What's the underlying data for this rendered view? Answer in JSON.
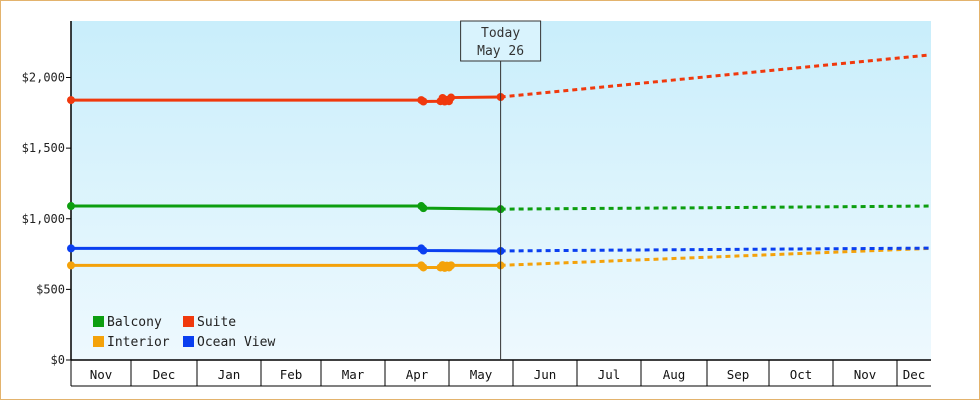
{
  "colors": {
    "background_top": "#c9eefb",
    "background_bottom": "#eef9fe",
    "frame_border": "#e3b36d",
    "Balcony": "#0d9e10",
    "Suite": "#f0390d",
    "Interior": "#f4a20a",
    "Ocean View": "#0a3ff0"
  },
  "chart_data": {
    "type": "line",
    "title": "",
    "xlabel": "",
    "ylabel": "",
    "ylim": [
      0,
      2400
    ],
    "y_ticks": [
      {
        "value": 0,
        "label": "$0"
      },
      {
        "value": 500,
        "label": "$500"
      },
      {
        "value": 1000,
        "label": "$1,000"
      },
      {
        "value": 1500,
        "label": "$1,500"
      },
      {
        "value": 2000,
        "label": "$2,000"
      }
    ],
    "x_months": [
      "Nov",
      "Dec",
      "Jan",
      "Feb",
      "Mar",
      "Apr",
      "May",
      "Jun",
      "Jul",
      "Aug",
      "Sep",
      "Oct",
      "Nov",
      "Dec"
    ],
    "grid": false,
    "legend_position": "bottom-left",
    "today_marker": {
      "line1": "Today",
      "line2": "May 26"
    },
    "series": [
      {
        "name": "Balcony",
        "history": [
          {
            "x": "Nov 1",
            "y": 1090
          },
          {
            "x": "Apr 18",
            "y": 1090
          },
          {
            "x": "Apr 19",
            "y": 1075
          },
          {
            "x": "May 26",
            "y": 1068
          }
        ],
        "forecast": [
          {
            "x": "May 26",
            "y": 1068
          },
          {
            "x": "Jul 1",
            "y": 1072
          },
          {
            "x": "Sep 1",
            "y": 1078
          },
          {
            "x": "Dec 31",
            "y": 1090
          }
        ]
      },
      {
        "name": "Suite",
        "history": [
          {
            "x": "Nov 1",
            "y": 1840
          },
          {
            "x": "Apr 18",
            "y": 1840
          },
          {
            "x": "Apr 19",
            "y": 1830
          },
          {
            "x": "Apr 27",
            "y": 1832
          },
          {
            "x": "Apr 28",
            "y": 1855
          },
          {
            "x": "Apr 29",
            "y": 1830
          },
          {
            "x": "Apr 30",
            "y": 1842
          },
          {
            "x": "May 1",
            "y": 1832
          },
          {
            "x": "May 2",
            "y": 1858
          },
          {
            "x": "May 26",
            "y": 1862
          }
        ],
        "forecast": [
          {
            "x": "May 26",
            "y": 1862
          },
          {
            "x": "Dec 31",
            "y": 2160
          }
        ]
      },
      {
        "name": "Interior",
        "history": [
          {
            "x": "Nov 1",
            "y": 670
          },
          {
            "x": "Apr 18",
            "y": 670
          },
          {
            "x": "Apr 19",
            "y": 655
          },
          {
            "x": "Apr 27",
            "y": 655
          },
          {
            "x": "Apr 28",
            "y": 672
          },
          {
            "x": "Apr 29",
            "y": 652
          },
          {
            "x": "Apr 30",
            "y": 668
          },
          {
            "x": "May 1",
            "y": 655
          },
          {
            "x": "May 2",
            "y": 670
          },
          {
            "x": "May 26",
            "y": 670
          }
        ],
        "forecast": [
          {
            "x": "May 26",
            "y": 670
          },
          {
            "x": "Dec 31",
            "y": 790
          }
        ]
      },
      {
        "name": "Ocean View",
        "history": [
          {
            "x": "Nov 1",
            "y": 790
          },
          {
            "x": "Apr 18",
            "y": 790
          },
          {
            "x": "Apr 19",
            "y": 775
          },
          {
            "x": "May 26",
            "y": 772
          }
        ],
        "forecast": [
          {
            "x": "May 26",
            "y": 772
          },
          {
            "x": "Jul 1",
            "y": 776
          },
          {
            "x": "Sep 1",
            "y": 782
          },
          {
            "x": "Dec 31",
            "y": 792
          }
        ]
      }
    ]
  }
}
